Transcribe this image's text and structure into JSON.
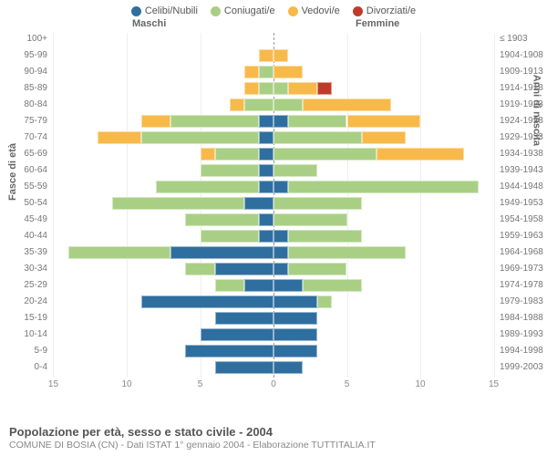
{
  "chart": {
    "type": "population-pyramid",
    "pxPerUnit": 16.1,
    "centerX": 242,
    "barHeight": 14,
    "rowSpacing": 18,
    "xlim": [
      -15,
      15
    ],
    "xticks": [
      15,
      10,
      5,
      0,
      5,
      10,
      15
    ],
    "grid_color": "#eeeeee",
    "center_dash_color": "#999999",
    "background_color": "#ffffff"
  },
  "legend": [
    {
      "label": "Celibi/Nubili",
      "color": "#2f6f9f"
    },
    {
      "label": "Coniugati/e",
      "color": "#a9cf85"
    },
    {
      "label": "Vedovi/e",
      "color": "#f8b94b"
    },
    {
      "label": "Divorziati/e",
      "color": "#c03a2b"
    }
  ],
  "headers": {
    "left": "Maschi",
    "right": "Femmine"
  },
  "axis_titles": {
    "left": "Fasce di età",
    "right": "Anni di nascita"
  },
  "footer": {
    "title": "Popolazione per età, sesso e stato civile - 2004",
    "sub": "COMUNE DI BOSIA (CN) - Dati ISTAT 1° gennaio 2004 - Elaborazione TUTTITALIA.IT"
  },
  "rows": [
    {
      "age": "100+",
      "birth": "≤ 1903",
      "m": {
        "c": 0,
        "co": 0,
        "v": 0,
        "d": 0
      },
      "f": {
        "c": 0,
        "co": 0,
        "v": 0,
        "d": 0
      }
    },
    {
      "age": "95-99",
      "birth": "1904-1908",
      "m": {
        "c": 0,
        "co": 0,
        "v": 1,
        "d": 0
      },
      "f": {
        "c": 0,
        "co": 0,
        "v": 1,
        "d": 0
      }
    },
    {
      "age": "90-94",
      "birth": "1909-1913",
      "m": {
        "c": 0,
        "co": 1,
        "v": 1,
        "d": 0
      },
      "f": {
        "c": 0,
        "co": 0,
        "v": 2,
        "d": 0
      }
    },
    {
      "age": "85-89",
      "birth": "1914-1918",
      "m": {
        "c": 0,
        "co": 1,
        "v": 1,
        "d": 0
      },
      "f": {
        "c": 0,
        "co": 1,
        "v": 2,
        "d": 1
      }
    },
    {
      "age": "80-84",
      "birth": "1919-1923",
      "m": {
        "c": 0,
        "co": 2,
        "v": 1,
        "d": 0
      },
      "f": {
        "c": 0,
        "co": 2,
        "v": 6,
        "d": 0
      }
    },
    {
      "age": "75-79",
      "birth": "1924-1928",
      "m": {
        "c": 1,
        "co": 6,
        "v": 2,
        "d": 0
      },
      "f": {
        "c": 1,
        "co": 4,
        "v": 5,
        "d": 0
      }
    },
    {
      "age": "70-74",
      "birth": "1929-1933",
      "m": {
        "c": 1,
        "co": 8,
        "v": 3,
        "d": 0
      },
      "f": {
        "c": 0,
        "co": 6,
        "v": 3,
        "d": 0
      }
    },
    {
      "age": "65-69",
      "birth": "1934-1938",
      "m": {
        "c": 1,
        "co": 3,
        "v": 1,
        "d": 0
      },
      "f": {
        "c": 0,
        "co": 7,
        "v": 6,
        "d": 0
      }
    },
    {
      "age": "60-64",
      "birth": "1939-1943",
      "m": {
        "c": 1,
        "co": 4,
        "v": 0,
        "d": 0
      },
      "f": {
        "c": 0,
        "co": 3,
        "v": 0,
        "d": 0
      }
    },
    {
      "age": "55-59",
      "birth": "1944-1948",
      "m": {
        "c": 1,
        "co": 7,
        "v": 0,
        "d": 0
      },
      "f": {
        "c": 1,
        "co": 13,
        "v": 0,
        "d": 0
      }
    },
    {
      "age": "50-54",
      "birth": "1949-1953",
      "m": {
        "c": 2,
        "co": 9,
        "v": 0,
        "d": 0
      },
      "f": {
        "c": 0,
        "co": 6,
        "v": 0,
        "d": 0
      }
    },
    {
      "age": "45-49",
      "birth": "1954-1958",
      "m": {
        "c": 1,
        "co": 5,
        "v": 0,
        "d": 0
      },
      "f": {
        "c": 0,
        "co": 5,
        "v": 0,
        "d": 0
      }
    },
    {
      "age": "40-44",
      "birth": "1959-1963",
      "m": {
        "c": 1,
        "co": 4,
        "v": 0,
        "d": 0
      },
      "f": {
        "c": 1,
        "co": 5,
        "v": 0,
        "d": 0
      }
    },
    {
      "age": "35-39",
      "birth": "1964-1968",
      "m": {
        "c": 7,
        "co": 7,
        "v": 0,
        "d": 0
      },
      "f": {
        "c": 1,
        "co": 8,
        "v": 0,
        "d": 0
      }
    },
    {
      "age": "30-34",
      "birth": "1969-1973",
      "m": {
        "c": 4,
        "co": 2,
        "v": 0,
        "d": 0
      },
      "f": {
        "c": 1,
        "co": 4,
        "v": 0,
        "d": 0
      }
    },
    {
      "age": "25-29",
      "birth": "1974-1978",
      "m": {
        "c": 2,
        "co": 2,
        "v": 0,
        "d": 0
      },
      "f": {
        "c": 2,
        "co": 4,
        "v": 0,
        "d": 0
      }
    },
    {
      "age": "20-24",
      "birth": "1979-1983",
      "m": {
        "c": 9,
        "co": 0,
        "v": 0,
        "d": 0
      },
      "f": {
        "c": 3,
        "co": 1,
        "v": 0,
        "d": 0
      }
    },
    {
      "age": "15-19",
      "birth": "1984-1988",
      "m": {
        "c": 4,
        "co": 0,
        "v": 0,
        "d": 0
      },
      "f": {
        "c": 3,
        "co": 0,
        "v": 0,
        "d": 0
      }
    },
    {
      "age": "10-14",
      "birth": "1989-1993",
      "m": {
        "c": 5,
        "co": 0,
        "v": 0,
        "d": 0
      },
      "f": {
        "c": 3,
        "co": 0,
        "v": 0,
        "d": 0
      }
    },
    {
      "age": "5-9",
      "birth": "1994-1998",
      "m": {
        "c": 6,
        "co": 0,
        "v": 0,
        "d": 0
      },
      "f": {
        "c": 3,
        "co": 0,
        "v": 0,
        "d": 0
      }
    },
    {
      "age": "0-4",
      "birth": "1999-2003",
      "m": {
        "c": 4,
        "co": 0,
        "v": 0,
        "d": 0
      },
      "f": {
        "c": 2,
        "co": 0,
        "v": 0,
        "d": 0
      }
    }
  ]
}
